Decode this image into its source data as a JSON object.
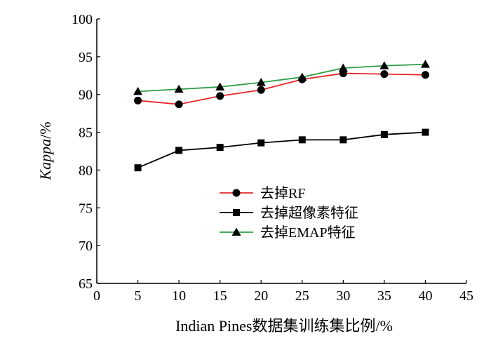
{
  "chart_data": {
    "type": "line",
    "title": "",
    "xlabel": "Indian Pines数据集训练集比例/%",
    "ylabel": "Kappa/%",
    "ylabel_italic_part": "Kappa",
    "ylabel_unit_part": "/%",
    "xlim": [
      0,
      45
    ],
    "ylim": [
      65,
      100
    ],
    "xticks": [
      0,
      5,
      10,
      15,
      20,
      25,
      30,
      35,
      40,
      45
    ],
    "yticks": [
      65,
      70,
      75,
      80,
      85,
      90,
      95,
      100
    ],
    "grid": false,
    "legend_position": "center",
    "x": [
      5,
      10,
      15,
      20,
      25,
      30,
      35,
      40
    ],
    "series": [
      {
        "name": "去掉RF",
        "color": "#e8262a",
        "marker": "circle",
        "values": [
          89.2,
          88.7,
          89.8,
          90.6,
          92.0,
          92.8,
          92.7,
          92.6
        ]
      },
      {
        "name": "去掉超像素特征",
        "color": "#000000",
        "marker": "square",
        "values": [
          80.3,
          82.6,
          83.0,
          83.6,
          84.0,
          84.0,
          84.7,
          85.0
        ]
      },
      {
        "name": "去掉EMAP特征",
        "color": "#2e9e48",
        "marker": "triangle",
        "values": [
          90.4,
          90.7,
          91.0,
          91.6,
          92.3,
          93.5,
          93.8,
          94.0
        ]
      }
    ]
  }
}
